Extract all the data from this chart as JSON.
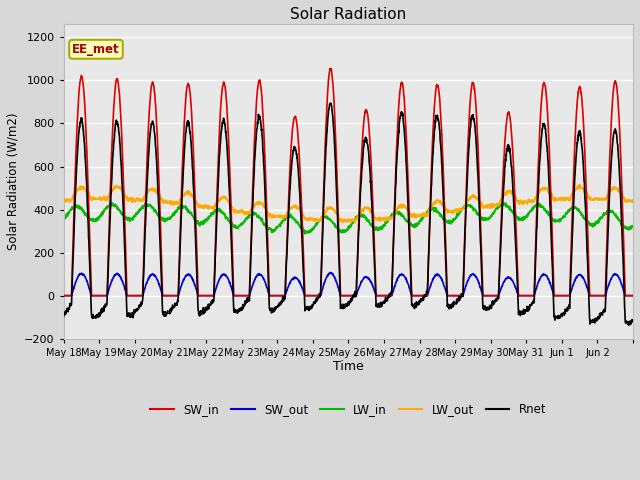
{
  "title": "Solar Radiation",
  "xlabel": "Time",
  "ylabel": "Solar Radiation (W/m2)",
  "ylim": [
    -200,
    1260
  ],
  "yticks": [
    -200,
    0,
    200,
    400,
    600,
    800,
    1000,
    1200
  ],
  "annotation_text": "EE_met",
  "bg_color": "#d8d8d8",
  "plot_bg_color": "#e8e8e8",
  "series": {
    "SW_in": {
      "color": "#dd0000",
      "lw": 1.2
    },
    "SW_out": {
      "color": "#0000dd",
      "lw": 1.2
    },
    "LW_in": {
      "color": "#00bb00",
      "lw": 1.2
    },
    "LW_out": {
      "color": "#ffaa00",
      "lw": 1.2
    },
    "Rnet": {
      "color": "#000000",
      "lw": 1.2
    }
  },
  "n_days": 16,
  "points_per_day": 144,
  "sw_in_peaks": [
    1020,
    1005,
    990,
    985,
    990,
    1000,
    835,
    1055,
    865,
    990,
    980,
    990,
    850,
    990,
    970,
    995
  ],
  "tick_labels": [
    "May 18",
    "May 19",
    "May 20",
    "May 21",
    "May 22",
    "May 23",
    "May 24",
    "May 25",
    "May 26",
    "May 27",
    "May 28",
    "May 29",
    "May 30",
    "May 31",
    "Jun 1",
    "Jun 2"
  ]
}
